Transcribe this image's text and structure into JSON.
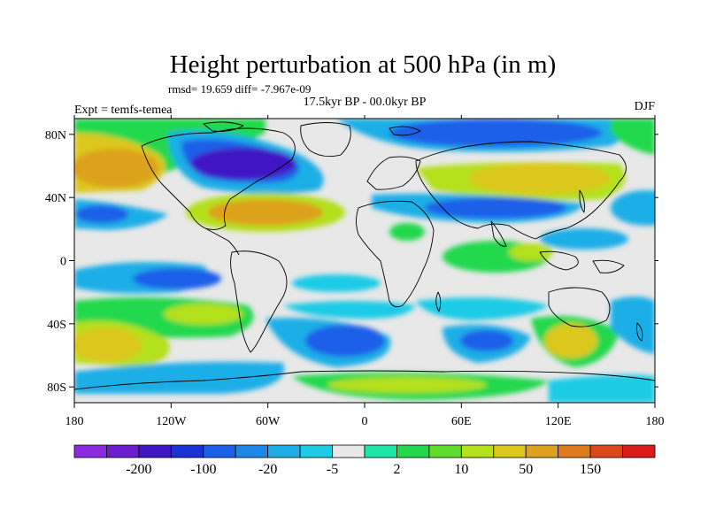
{
  "title": "Height perturbation at 500 hPa (in m)",
  "stats": "rmsd= 19.659 diff= -7.967e-09",
  "period": "17.5kyr BP - 00.0kyr BP",
  "experiment": "Expt = temfs-temea",
  "season": "DJF",
  "lon_ticks": [
    "180",
    "120W",
    "60W",
    "0",
    "60E",
    "120E",
    "180"
  ],
  "lat_ticks": [
    "80N",
    "40N",
    "0",
    "40S",
    "80S"
  ],
  "colorbar": {
    "colors": [
      "#8a2be2",
      "#6a1ccf",
      "#3f17c4",
      "#1c31d6",
      "#1c5ee8",
      "#1e86e8",
      "#1eaee6",
      "#1ccbe6",
      "#e8e8e8",
      "#1ee6a6",
      "#24d84e",
      "#5fdc2a",
      "#b4e01c",
      "#dcc81c",
      "#dca21c",
      "#dc7a1c",
      "#dc481c",
      "#dc1c1c"
    ],
    "labels": [
      "-200",
      "-100",
      "-20",
      "-5",
      "2",
      "10",
      "50",
      "150"
    ],
    "label_after_box": [
      1,
      3,
      5,
      7,
      9,
      11,
      13,
      15
    ]
  }
}
